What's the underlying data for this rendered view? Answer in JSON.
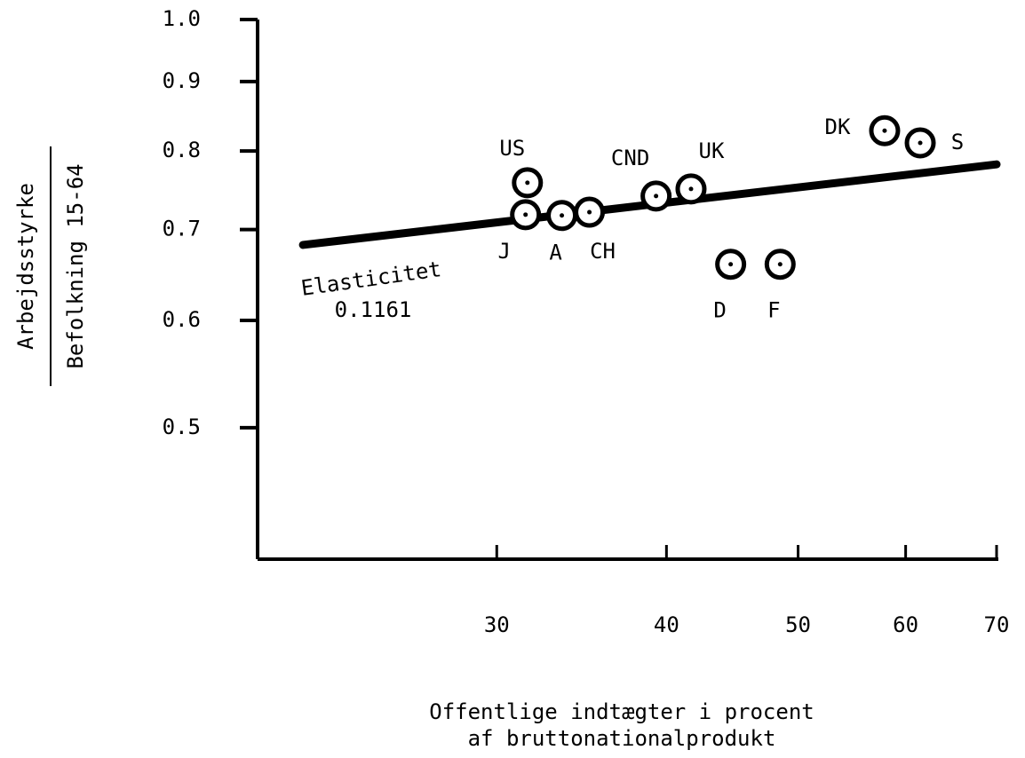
{
  "chart_data": {
    "type": "scatter",
    "xlabel": [
      "Offentlige indtægter i procent",
      "af bruttonationalprodukt"
    ],
    "ylabel": [
      "Arbejdsstyrke",
      "Befolkning 15-64"
    ],
    "xscale": "log",
    "yscale": "log",
    "xlim": [
      20,
      70
    ],
    "ylim": [
      0.4,
      1
    ],
    "xticks": [
      30,
      40,
      50,
      60,
      70
    ],
    "yticks": [
      {
        "value": 1,
        "label": "1.0"
      },
      0.9,
      0.8,
      0.7,
      0.6,
      0.5
    ],
    "series": [
      {
        "labels": [
          "US",
          "J",
          "A",
          "CH",
          "CND",
          "UK",
          "D",
          "F",
          "DK",
          "S"
        ],
        "x": [
          31.6,
          31.5,
          33.5,
          35.1,
          39.3,
          41.7,
          44.6,
          48.5,
          57.9,
          61.5
        ],
        "y": [
          0.758,
          0.718,
          0.717,
          0.721,
          0.741,
          0.75,
          0.66,
          0.66,
          0.828,
          0.811
        ],
        "color": "#000000"
      }
    ],
    "fit_line": {
      "x": [
        21.6,
        70
      ],
      "y": [
        0.682,
        0.782
      ]
    },
    "annotation": [
      "Elasticitet",
      "0.1161"
    ]
  }
}
